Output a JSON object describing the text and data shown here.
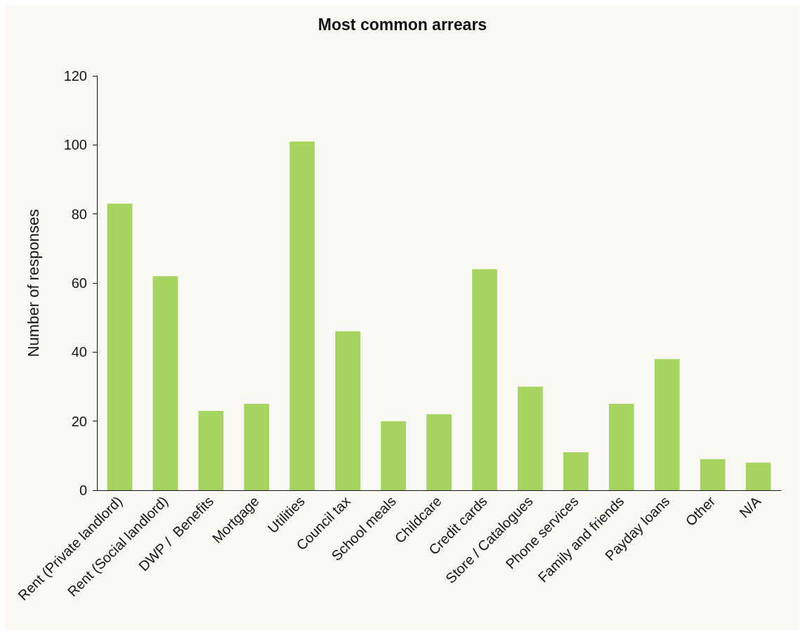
{
  "chart_data": {
    "type": "bar",
    "title": "Most common arrears",
    "ylabel": "Number of responses",
    "categories": [
      "Rent (Private landlord)",
      "Rent (Social landlord)",
      "DWP /  Benefits",
      "Mortgage",
      "Utilities",
      "Council tax",
      "School meals",
      "Childcare",
      "Credit cards",
      "Store / Catalogues",
      "Phone services",
      "Family and friends",
      "Payday loans",
      "Other",
      "N/A"
    ],
    "values": [
      83,
      62,
      23,
      25,
      101,
      46,
      20,
      22,
      64,
      30,
      11,
      25,
      38,
      9,
      8
    ],
    "color": "#a5d55f",
    "ylim": [
      0,
      120
    ],
    "yticks": [
      0,
      20,
      40,
      60,
      80,
      100,
      120
    ],
    "grid": false
  }
}
